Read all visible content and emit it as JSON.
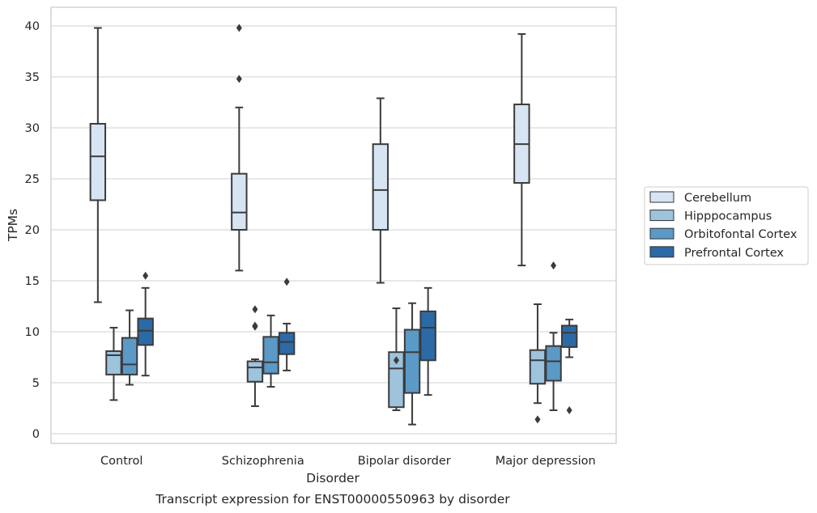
{
  "chart_data": {
    "type": "box",
    "title": "Transcript expression for ENST00000550963 by disorder",
    "xlabel": "Disorder",
    "ylabel": "TPMs",
    "ylim": [
      -1,
      41.8
    ],
    "yticks": [
      0,
      5,
      10,
      15,
      20,
      25,
      30,
      35,
      40
    ],
    "grid": true,
    "legend_position": "right",
    "categories": [
      "Control",
      "Schizophrenia",
      "Bipolar disorder",
      "Major depression"
    ],
    "series": [
      {
        "name": "Cerebellum",
        "color": "#d6e4f3",
        "boxes": [
          {
            "whislo": 12.9,
            "q1": 22.9,
            "med": 27.2,
            "q3": 30.4,
            "whishi": 39.8,
            "fliers": []
          },
          {
            "whislo": 16.0,
            "q1": 20.0,
            "med": 21.7,
            "q3": 25.5,
            "whishi": 32.0,
            "fliers": [
              34.8,
              39.8
            ]
          },
          {
            "whislo": 14.8,
            "q1": 20.0,
            "med": 23.9,
            "q3": 28.4,
            "whishi": 32.9,
            "fliers": []
          },
          {
            "whislo": 16.5,
            "q1": 24.6,
            "med": 28.4,
            "q3": 32.3,
            "whishi": 39.2,
            "fliers": []
          }
        ]
      },
      {
        "name": "Hipppocampus",
        "color": "#9dc3dd",
        "boxes": [
          {
            "whislo": 3.3,
            "q1": 5.8,
            "med": 7.7,
            "q3": 8.1,
            "whishi": 10.4,
            "fliers": []
          },
          {
            "whislo": 2.7,
            "q1": 5.1,
            "med": 6.5,
            "q3": 7.1,
            "whishi": 7.3,
            "fliers": [
              10.5,
              10.6,
              12.2
            ]
          },
          {
            "whislo": 2.3,
            "q1": 2.6,
            "med": 6.4,
            "q3": 8.0,
            "whishi": 12.3,
            "fliers": [
              7.2
            ]
          },
          {
            "whislo": 3.0,
            "q1": 4.9,
            "med": 7.2,
            "q3": 8.2,
            "whishi": 12.7,
            "fliers": [
              1.4
            ]
          }
        ]
      },
      {
        "name": "Orbitofontal Cortex",
        "color": "#5b99c6",
        "boxes": [
          {
            "whislo": 4.8,
            "q1": 5.8,
            "med": 6.8,
            "q3": 9.4,
            "whishi": 12.1,
            "fliers": []
          },
          {
            "whislo": 4.6,
            "q1": 5.9,
            "med": 7.0,
            "q3": 9.5,
            "whishi": 11.6,
            "fliers": []
          },
          {
            "whislo": 0.9,
            "q1": 4.0,
            "med": 8.0,
            "q3": 10.2,
            "whishi": 12.8,
            "fliers": []
          },
          {
            "whislo": 2.3,
            "q1": 5.2,
            "med": 7.1,
            "q3": 8.6,
            "whishi": 9.9,
            "fliers": [
              16.5
            ]
          }
        ]
      },
      {
        "name": "Prefrontal Cortex",
        "color": "#2c6aa7",
        "boxes": [
          {
            "whislo": 5.7,
            "q1": 8.7,
            "med": 10.1,
            "q3": 11.3,
            "whishi": 14.3,
            "fliers": [
              15.5
            ]
          },
          {
            "whislo": 6.2,
            "q1": 7.8,
            "med": 9.0,
            "q3": 9.9,
            "whishi": 10.8,
            "fliers": [
              14.9
            ]
          },
          {
            "whislo": 3.8,
            "q1": 7.2,
            "med": 10.4,
            "q3": 12.0,
            "whishi": 14.3,
            "fliers": []
          },
          {
            "whislo": 7.5,
            "q1": 8.5,
            "med": 9.9,
            "q3": 10.6,
            "whishi": 11.2,
            "fliers": [
              2.3
            ]
          }
        ]
      }
    ]
  }
}
